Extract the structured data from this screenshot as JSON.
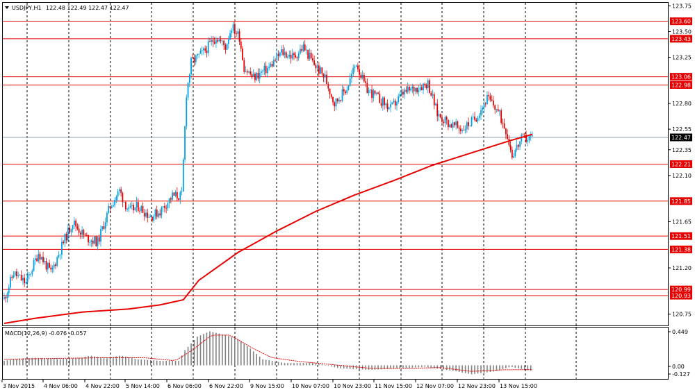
{
  "header": {
    "symbol": "USDJPY,H1",
    "ohlc": "122.48 122.49 122.47 122.47"
  },
  "macd": {
    "label": "MACD(12,26,9) -0.076 -0.057",
    "ticks": [
      "0.449",
      "0.00",
      "-0.127"
    ]
  },
  "colors": {
    "background": "#ffffff",
    "bull_candle": "#00a0e6",
    "bear_candle": "#e60000",
    "sr_line": "#e60000",
    "ma_line": "#e60000",
    "current_price_line": "#8aa0b4",
    "macd_histogram": "#808080",
    "macd_signal": "#e60000"
  },
  "chart_data": {
    "type": "candlestick",
    "symbol": "USDJPY",
    "timeframe": "H1",
    "ylim": [
      120.64,
      123.78
    ],
    "y_ticks": [
      "123.75",
      "123.50",
      "123.25",
      "122.80",
      "122.55",
      "122.35",
      "122.10",
      "121.65",
      "121.20",
      "120.75"
    ],
    "x_labels": [
      "3 Nov 2015",
      "4 Nov 06:00",
      "4 Nov 22:00",
      "5 Nov 14:00",
      "6 Nov 06:00",
      "6 Nov 22:00",
      "9 Nov 15:00",
      "10 Nov 07:00",
      "10 Nov 23:00",
      "11 Nov 15:00",
      "12 Nov 07:00",
      "12 Nov 23:00",
      "13 Nov 15:00"
    ],
    "horizontal_levels": [
      {
        "value": 123.6,
        "label": "123.60"
      },
      {
        "value": 123.43,
        "label": "123.43"
      },
      {
        "value": 123.06,
        "label": "123.06"
      },
      {
        "value": 122.98,
        "label": "122.98"
      },
      {
        "value": 122.21,
        "label": "122.21"
      },
      {
        "value": 121.85,
        "label": "121.85"
      },
      {
        "value": 121.51,
        "label": "121.51"
      },
      {
        "value": 121.38,
        "label": "121.38"
      },
      {
        "value": 120.99,
        "label": "120.99"
      },
      {
        "value": 120.93,
        "label": "120.93"
      }
    ],
    "current_price": {
      "value": 122.47,
      "label": "122.47"
    },
    "close_path": [
      [
        0,
        120.9
      ],
      [
        6,
        121.15
      ],
      [
        14,
        121.05
      ],
      [
        22,
        121.35
      ],
      [
        30,
        121.15
      ],
      [
        38,
        121.45
      ],
      [
        44,
        121.65
      ],
      [
        52,
        121.5
      ],
      [
        60,
        121.45
      ],
      [
        68,
        121.8
      ],
      [
        74,
        121.95
      ],
      [
        80,
        121.75
      ],
      [
        86,
        121.8
      ],
      [
        94,
        121.7
      ],
      [
        100,
        121.75
      ],
      [
        108,
        121.9
      ],
      [
        114,
        121.9
      ],
      [
        117,
        122.9
      ],
      [
        120,
        123.2
      ],
      [
        128,
        123.3
      ],
      [
        136,
        123.45
      ],
      [
        142,
        123.35
      ],
      [
        146,
        123.55
      ],
      [
        151,
        123.45
      ],
      [
        154,
        123.15
      ],
      [
        160,
        123.05
      ],
      [
        170,
        123.15
      ],
      [
        178,
        123.3
      ],
      [
        186,
        123.25
      ],
      [
        192,
        123.35
      ],
      [
        198,
        123.2
      ],
      [
        206,
        123.05
      ],
      [
        212,
        122.8
      ],
      [
        220,
        122.95
      ],
      [
        226,
        123.2
      ],
      [
        232,
        122.95
      ],
      [
        240,
        122.85
      ],
      [
        248,
        122.75
      ],
      [
        256,
        122.9
      ],
      [
        264,
        122.95
      ],
      [
        272,
        123.0
      ],
      [
        278,
        122.7
      ],
      [
        286,
        122.6
      ],
      [
        294,
        122.55
      ],
      [
        302,
        122.65
      ],
      [
        310,
        122.85
      ],
      [
        316,
        122.75
      ],
      [
        322,
        122.55
      ],
      [
        326,
        122.3
      ],
      [
        332,
        122.45
      ],
      [
        339,
        122.47
      ]
    ],
    "moving_average_path": [
      [
        0,
        120.66
      ],
      [
        20,
        120.71
      ],
      [
        50,
        120.77
      ],
      [
        80,
        120.8
      ],
      [
        100,
        120.84
      ],
      [
        115,
        120.89
      ],
      [
        125,
        121.08
      ],
      [
        150,
        121.35
      ],
      [
        175,
        121.56
      ],
      [
        200,
        121.75
      ],
      [
        225,
        121.91
      ],
      [
        250,
        122.05
      ],
      [
        275,
        122.2
      ],
      [
        300,
        122.32
      ],
      [
        325,
        122.44
      ],
      [
        339,
        122.5
      ]
    ],
    "macd_ylim": [
      -0.18,
      0.5
    ],
    "macd_histogram_path": [
      [
        0,
        0.06
      ],
      [
        10,
        0.09
      ],
      [
        20,
        0.1
      ],
      [
        35,
        0.08
      ],
      [
        50,
        0.1
      ],
      [
        55,
        0.13
      ],
      [
        65,
        0.09
      ],
      [
        75,
        0.13
      ],
      [
        85,
        0.08
      ],
      [
        100,
        0.06
      ],
      [
        112,
        0.06
      ],
      [
        116,
        0.2
      ],
      [
        124,
        0.38
      ],
      [
        132,
        0.45
      ],
      [
        142,
        0.4
      ],
      [
        150,
        0.35
      ],
      [
        158,
        0.22
      ],
      [
        166,
        0.08
      ],
      [
        180,
        0.03
      ],
      [
        200,
        0.03
      ],
      [
        215,
        -0.04
      ],
      [
        235,
        -0.06
      ],
      [
        255,
        -0.04
      ],
      [
        270,
        -0.02
      ],
      [
        290,
        -0.08
      ],
      [
        300,
        -0.12
      ],
      [
        315,
        -0.08
      ],
      [
        325,
        -0.02
      ],
      [
        339,
        -0.076
      ]
    ],
    "macd_signal_path": [
      [
        0,
        0.08
      ],
      [
        30,
        0.09
      ],
      [
        60,
        0.1
      ],
      [
        90,
        0.1
      ],
      [
        110,
        0.06
      ],
      [
        122,
        0.22
      ],
      [
        133,
        0.4
      ],
      [
        145,
        0.4
      ],
      [
        160,
        0.22
      ],
      [
        172,
        0.1
      ],
      [
        190,
        0.05
      ],
      [
        210,
        0.01
      ],
      [
        235,
        -0.04
      ],
      [
        260,
        -0.04
      ],
      [
        280,
        -0.03
      ],
      [
        300,
        -0.08
      ],
      [
        320,
        -0.06
      ],
      [
        339,
        -0.057
      ]
    ]
  }
}
